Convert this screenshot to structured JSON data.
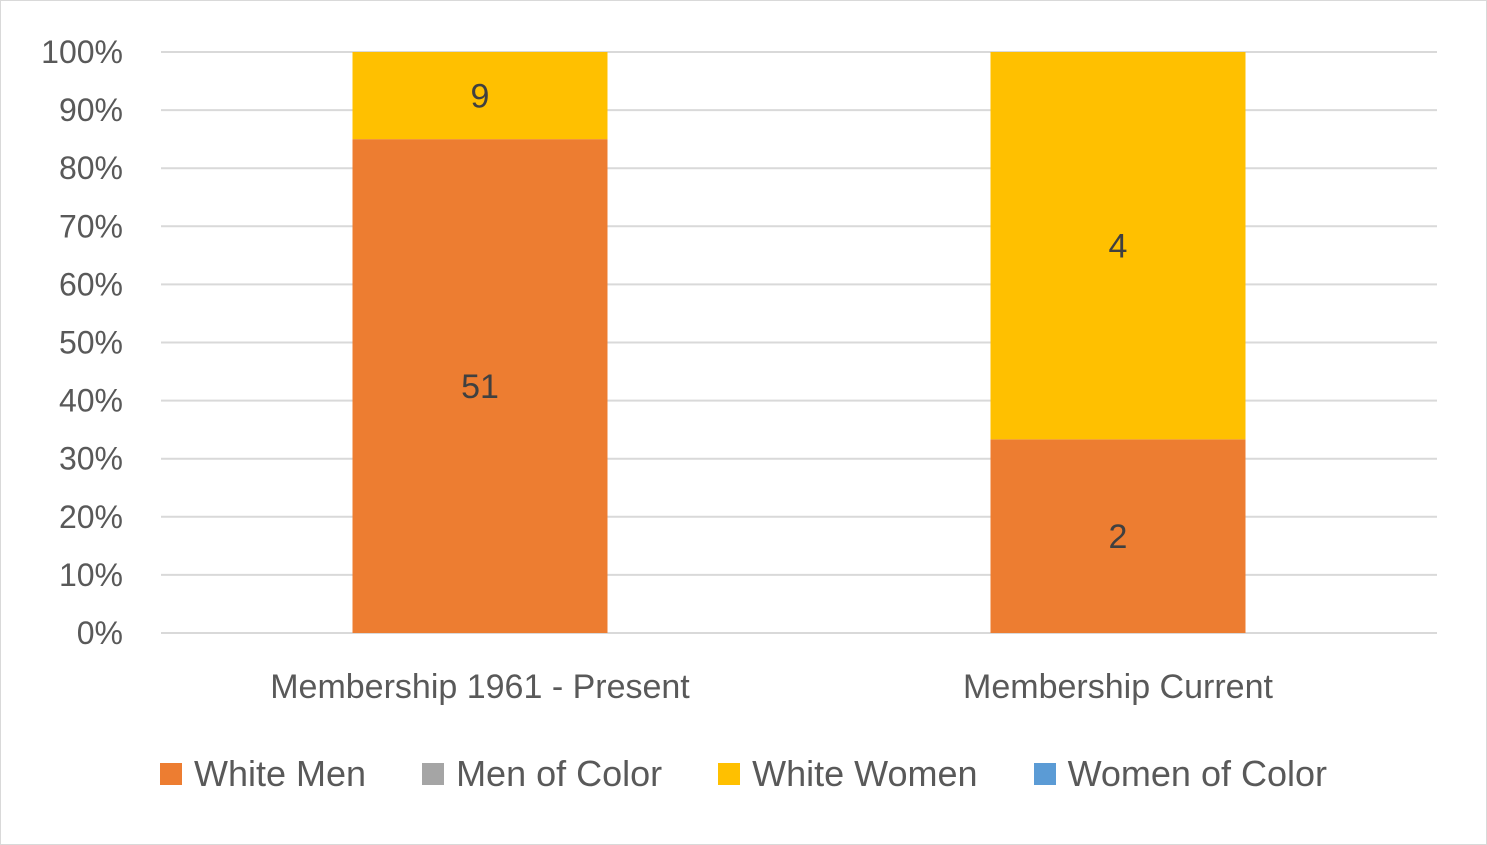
{
  "chart_data": {
    "type": "bar",
    "stacked": "percent",
    "categories": [
      "Membership 1961 - Present",
      "Membership Current"
    ],
    "series": [
      {
        "name": "White Men",
        "values": [
          51,
          2
        ],
        "color": "#ED7D31"
      },
      {
        "name": "Men of Color",
        "values": [
          0,
          0
        ],
        "color": "#A5A5A5"
      },
      {
        "name": "White Women",
        "values": [
          9,
          4
        ],
        "color": "#FFC000"
      },
      {
        "name": "Women of Color",
        "values": [
          0,
          0
        ],
        "color": "#5B9BD5"
      }
    ],
    "yticks": [
      "0%",
      "10%",
      "20%",
      "30%",
      "40%",
      "50%",
      "60%",
      "70%",
      "80%",
      "90%",
      "100%"
    ],
    "ylim": [
      0,
      100
    ],
    "grid": true,
    "legend_position": "bottom"
  }
}
